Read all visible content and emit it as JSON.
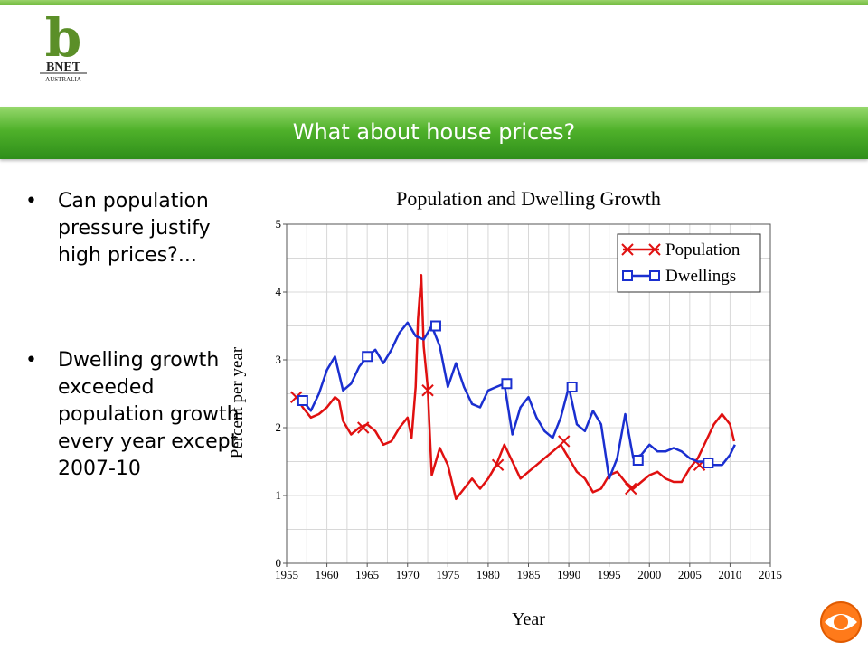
{
  "logo": {
    "letter": "b",
    "name": "BNET",
    "region": "AUSTRALIA",
    "color": "#5b8f28"
  },
  "slide": {
    "title": "What about house prices?",
    "bullets": [
      "Can population pressure justify high prices?...",
      "Dwelling growth exceeded population growth every year except 2007-10"
    ]
  },
  "chart_data": {
    "type": "line",
    "title": "Population and Dwelling Growth",
    "xlabel": "Year",
    "ylabel": "Percent per year",
    "xlim": [
      1955,
      2015
    ],
    "ylim": [
      0,
      5
    ],
    "xticks": [
      1955,
      1960,
      1965,
      1970,
      1975,
      1980,
      1985,
      1990,
      1995,
      2000,
      2005,
      2010,
      2015
    ],
    "yticks": [
      0,
      1,
      2,
      3,
      4,
      5
    ],
    "grid": true,
    "legend_position": "top-right",
    "series": [
      {
        "name": "Population",
        "color": "#e01010",
        "marker": "x",
        "x": [
          1956.2,
          1957,
          1958,
          1959,
          1960,
          1961,
          1961.5,
          1962,
          1963,
          1964,
          1965,
          1966,
          1967,
          1968,
          1969,
          1970,
          1970.5,
          1971,
          1971.3,
          1971.7,
          1972,
          1972.5,
          1973,
          1973.5,
          1974,
          1975,
          1976,
          1977,
          1978,
          1979,
          1980,
          1981,
          1982,
          1983,
          1984,
          1985,
          1986,
          1987,
          1988,
          1989,
          1990,
          1991,
          1992,
          1993,
          1994,
          1995,
          1996,
          1997,
          1998,
          1999,
          2000,
          2001,
          2002,
          2003,
          2004,
          2005,
          2006,
          2007,
          2008,
          2009,
          2010,
          2010.5
        ],
        "values": [
          2.45,
          2.3,
          2.15,
          2.2,
          2.3,
          2.45,
          2.4,
          2.1,
          1.9,
          2.0,
          2.05,
          1.95,
          1.75,
          1.8,
          2.0,
          2.15,
          1.85,
          2.6,
          3.6,
          4.25,
          3.2,
          2.6,
          1.3,
          1.5,
          1.7,
          1.45,
          0.95,
          1.1,
          1.25,
          1.1,
          1.25,
          1.45,
          1.75,
          1.5,
          1.25,
          1.35,
          1.45,
          1.55,
          1.65,
          1.75,
          1.55,
          1.35,
          1.25,
          1.05,
          1.1,
          1.3,
          1.35,
          1.2,
          1.1,
          1.2,
          1.3,
          1.35,
          1.25,
          1.2,
          1.2,
          1.4,
          1.55,
          1.8,
          2.05,
          2.2,
          2.05,
          1.8
        ],
        "marker_x": [
          1956.2,
          1964.5,
          1972.5,
          1981.2,
          1989.4,
          1997.7,
          2006.2
        ],
        "marker_values": [
          2.45,
          2.0,
          2.55,
          1.45,
          1.8,
          1.1,
          1.45
        ]
      },
      {
        "name": "Dwellings",
        "color": "#1a2fd0",
        "marker": "square",
        "x": [
          1957,
          1958,
          1959,
          1960,
          1961,
          1962,
          1963,
          1964,
          1965,
          1966,
          1967,
          1968,
          1969,
          1970,
          1971,
          1972,
          1973,
          1974,
          1975,
          1976,
          1977,
          1978,
          1979,
          1980,
          1981,
          1982,
          1983,
          1984,
          1985,
          1986,
          1987,
          1988,
          1989,
          1990,
          1991,
          1992,
          1993,
          1994,
          1995,
          1996,
          1997,
          1998,
          1999,
          2000,
          2001,
          2002,
          2003,
          2004,
          2005,
          2006,
          2007,
          2008,
          2009,
          2010,
          2010.6
        ],
        "values": [
          2.4,
          2.25,
          2.5,
          2.85,
          3.05,
          2.55,
          2.65,
          2.9,
          3.05,
          3.15,
          2.95,
          3.15,
          3.4,
          3.55,
          3.35,
          3.3,
          3.5,
          3.2,
          2.6,
          2.95,
          2.6,
          2.35,
          2.3,
          2.55,
          2.6,
          2.65,
          1.9,
          2.3,
          2.45,
          2.15,
          1.95,
          1.85,
          2.15,
          2.6,
          2.05,
          1.95,
          2.25,
          2.05,
          1.25,
          1.55,
          2.2,
          1.55,
          1.6,
          1.75,
          1.65,
          1.65,
          1.7,
          1.65,
          1.55,
          1.5,
          1.5,
          1.45,
          1.45,
          1.6,
          1.75
        ],
        "marker_x": [
          1957,
          1965,
          1973.5,
          1982.3,
          1990.4,
          1998.6,
          2007.3
        ],
        "marker_values": [
          2.4,
          3.05,
          3.5,
          2.65,
          2.6,
          1.52,
          1.48
        ]
      }
    ]
  }
}
